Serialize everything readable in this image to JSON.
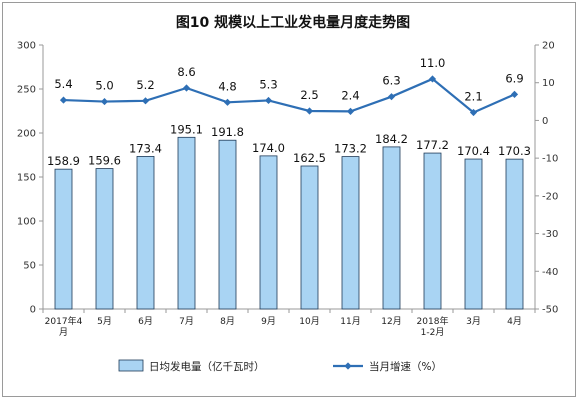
{
  "chart_data": {
    "type": "bar",
    "title": "图10  规模以上工业发电量月度走势图",
    "categories": [
      "2017年4月",
      "5月",
      "6月",
      "7月",
      "8月",
      "9月",
      "10月",
      "11月",
      "12月",
      "2018年 1-2月",
      "3月",
      "4月"
    ],
    "series": [
      {
        "name": "日均发电量（亿千瓦时）",
        "type": "bar",
        "axis": "left",
        "values": [
          158.9,
          159.6,
          173.4,
          195.1,
          191.8,
          174.0,
          162.5,
          173.2,
          184.2,
          177.2,
          170.4,
          170.3
        ],
        "labels": [
          "158.9",
          "159.6",
          "173.4",
          "195.1",
          "191.8",
          "174.0",
          "162.5",
          "173.2",
          "184.2",
          "177.2",
          "170.4",
          "170.3"
        ]
      },
      {
        "name": "当月增速（%）",
        "type": "line",
        "axis": "right",
        "values": [
          5.4,
          5.0,
          5.2,
          8.6,
          4.8,
          5.3,
          2.5,
          2.4,
          6.3,
          11.0,
          2.1,
          6.9
        ],
        "labels": [
          "5.4",
          "5.0",
          "5.2",
          "8.6",
          "4.8",
          "5.3",
          "2.5",
          "2.4",
          "6.3",
          "11.0",
          "2.1",
          "6.9"
        ]
      }
    ],
    "y_left": {
      "min": 0,
      "max": 300,
      "ticks": [
        "0",
        "50",
        "100",
        "150",
        "200",
        "250",
        "300"
      ]
    },
    "y_right": {
      "min": -50,
      "max": 20,
      "ticks": [
        "-50",
        "-40",
        "-30",
        "-20",
        "-10",
        "0",
        "10",
        "20"
      ]
    },
    "grid": false,
    "legend_position": "bottom",
    "colors": {
      "bar_fill": "#a9d4f3",
      "bar_stroke": "#1f3a57",
      "line": "#2e6fb5",
      "axis": "#999999"
    }
  }
}
